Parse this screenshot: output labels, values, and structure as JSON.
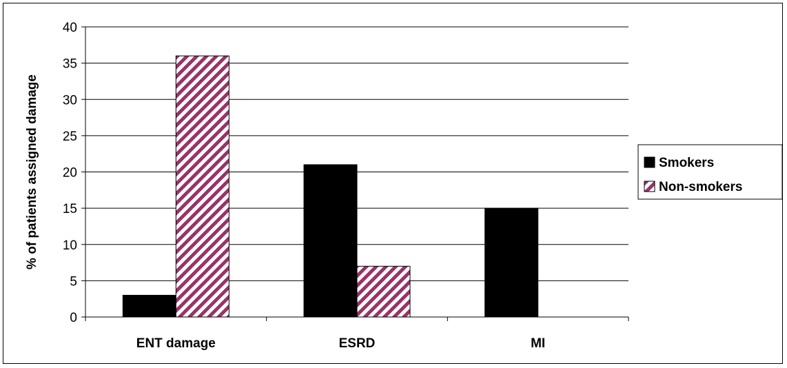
{
  "chart_data": {
    "type": "bar",
    "title": "",
    "xlabel": "",
    "ylabel": "% of patients assigned damage",
    "ylim": [
      0,
      40
    ],
    "yticks": [
      0,
      5,
      10,
      15,
      20,
      25,
      30,
      35,
      40
    ],
    "grid": "horizontal",
    "legend_position": "right",
    "categories": [
      "ENT damage",
      "ESRD",
      "MI"
    ],
    "series": [
      {
        "name": "Smokers",
        "values": [
          3,
          21,
          15
        ],
        "fill": "solid",
        "color": "#000000"
      },
      {
        "name": "Non-smokers",
        "values": [
          36,
          7,
          0
        ],
        "fill": "diagonal-stripes",
        "color": "#993366"
      }
    ]
  }
}
